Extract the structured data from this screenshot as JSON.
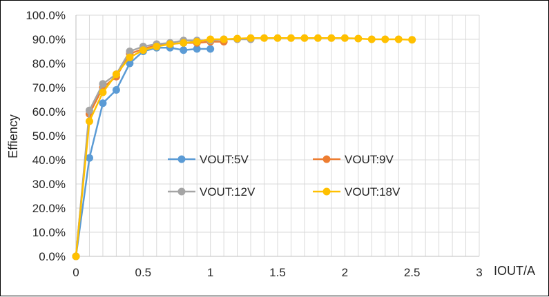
{
  "chart_data": {
    "type": "line",
    "title": "",
    "xlabel": "IOUT/A",
    "ylabel": "Effiency",
    "xlim": [
      0,
      3
    ],
    "ylim": [
      0,
      100
    ],
    "x_ticks": [
      "0",
      "0.5",
      "1",
      "1.5",
      "2",
      "2.5",
      "3"
    ],
    "y_ticks": [
      "0.0%",
      "10.0%",
      "20.0%",
      "30.0%",
      "40.0%",
      "50.0%",
      "60.0%",
      "70.0%",
      "80.0%",
      "90.0%",
      "100.0%"
    ],
    "grid": true,
    "legend_position": "center",
    "series": [
      {
        "name": "VOUT:5V",
        "color": "#5b9bd5",
        "x": [
          0,
          0.1,
          0.2,
          0.3,
          0.4,
          0.5,
          0.6,
          0.7,
          0.8,
          0.9,
          1.0
        ],
        "y": [
          0,
          40.8,
          63.5,
          69.0,
          80.0,
          85.0,
          86.5,
          86.5,
          85.5,
          86.0,
          86.0
        ]
      },
      {
        "name": "VOUT:9V",
        "color": "#ed7d31",
        "x": [
          0,
          0.1,
          0.2,
          0.3,
          0.4,
          0.5,
          0.6,
          0.7,
          0.8,
          0.9,
          1.0,
          1.1
        ],
        "y": [
          0,
          59.0,
          70.0,
          74.5,
          84.0,
          86.0,
          87.5,
          88.0,
          88.5,
          88.5,
          89.0,
          89.0
        ]
      },
      {
        "name": "VOUT:12V",
        "color": "#a5a5a5",
        "x": [
          0,
          0.1,
          0.2,
          0.3,
          0.4,
          0.5,
          0.6,
          0.7,
          0.8,
          0.9,
          1.0,
          1.1,
          1.2,
          1.3
        ],
        "y": [
          0,
          60.5,
          71.5,
          75.5,
          85.0,
          87.0,
          88.0,
          88.5,
          89.5,
          89.5,
          89.5,
          90.0,
          90.0,
          90.0
        ]
      },
      {
        "name": "VOUT:18V",
        "color": "#ffc000",
        "x": [
          0,
          0.1,
          0.2,
          0.3,
          0.4,
          0.5,
          0.6,
          0.7,
          0.8,
          0.9,
          1.0,
          1.1,
          1.2,
          1.3,
          1.4,
          1.5,
          1.6,
          1.7,
          1.8,
          1.9,
          2.0,
          2.1,
          2.2,
          2.3,
          2.4,
          2.5
        ],
        "y": [
          0,
          56.0,
          68.0,
          75.5,
          82.5,
          85.5,
          87.0,
          88.0,
          88.5,
          89.0,
          90.0,
          90.0,
          90.3,
          90.5,
          90.5,
          90.5,
          90.5,
          90.5,
          90.5,
          90.5,
          90.5,
          90.3,
          90.0,
          90.0,
          90.0,
          89.8
        ]
      }
    ]
  }
}
